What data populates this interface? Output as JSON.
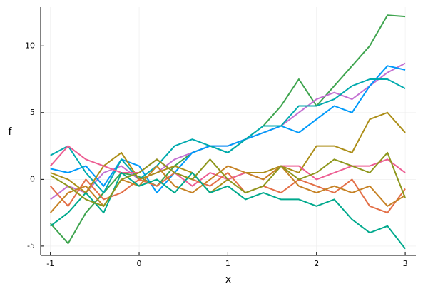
{
  "chart_data": {
    "type": "line",
    "xlabel": "x",
    "ylabel": "f",
    "x": [
      -1,
      -0.8,
      -0.6,
      -0.4,
      -0.2,
      0,
      0.2,
      0.4,
      0.6,
      0.8,
      1,
      1.2,
      1.4,
      1.6,
      1.8,
      2,
      2.2,
      2.4,
      2.6,
      2.8,
      3
    ],
    "xlim": [
      -1.11,
      3.12
    ],
    "xticks": [
      -1,
      0,
      1,
      2,
      3
    ],
    "ylim": [
      -5.7,
      12.9
    ],
    "yticks": [
      -5,
      0,
      5,
      10
    ],
    "grid": true,
    "legend": false,
    "series": [
      {
        "color": "#3ea44e",
        "values": [
          -3.3,
          -4.8,
          -2.5,
          -1.0,
          0.5,
          0.2,
          -0.5,
          1.0,
          2.0,
          2.5,
          2.0,
          3.0,
          4.0,
          5.5,
          7.5,
          5.5,
          7.0,
          8.5,
          10.0,
          12.3,
          12.2
        ]
      },
      {
        "color": "#c371d2",
        "values": [
          -1.5,
          -0.5,
          -1.0,
          0.5,
          1.0,
          0.0,
          0.5,
          1.5,
          2.0,
          2.5,
          2.5,
          3.0,
          3.5,
          4.0,
          5.0,
          6.0,
          6.5,
          6.0,
          7.0,
          8.0,
          8.7
        ]
      },
      {
        "color": "#009afa",
        "values": [
          0.8,
          0.5,
          1.0,
          -0.5,
          1.5,
          1.0,
          -1.0,
          0.5,
          2.0,
          2.5,
          2.5,
          3.0,
          3.5,
          4.0,
          3.5,
          4.5,
          5.5,
          5.0,
          7.0,
          8.5,
          8.2
        ]
      },
      {
        "color": "#00aaae",
        "values": [
          1.8,
          2.5,
          0.5,
          -1.0,
          1.5,
          0.0,
          1.0,
          2.5,
          3.0,
          2.5,
          2.0,
          3.0,
          4.0,
          4.0,
          5.5,
          5.5,
          6.0,
          7.0,
          7.5,
          7.5,
          6.8
        ]
      },
      {
        "color": "#ac8e18",
        "values": [
          0.5,
          0.0,
          -1.0,
          1.0,
          2.0,
          0.0,
          0.5,
          1.0,
          0.5,
          -1.0,
          0.0,
          0.5,
          0.5,
          1.0,
          0.5,
          2.5,
          2.5,
          2.0,
          4.5,
          5.0,
          3.5
        ]
      },
      {
        "color": "#ed5e93",
        "values": [
          1.0,
          2.5,
          1.5,
          1.0,
          0.5,
          0.5,
          1.5,
          0.5,
          -0.5,
          0.5,
          0.0,
          0.5,
          0.0,
          1.0,
          1.0,
          0.0,
          0.5,
          1.0,
          1.0,
          1.5,
          0.5
        ]
      },
      {
        "color": "#e36f47",
        "values": [
          -0.5,
          -2.0,
          0.0,
          -1.5,
          -1.0,
          0.0,
          -0.5,
          0.5,
          0.0,
          -0.5,
          0.5,
          -1.0,
          -0.5,
          -1.0,
          0.0,
          -0.5,
          -1.0,
          0.0,
          -2.0,
          -2.5,
          -0.7
        ]
      },
      {
        "color": "#c68225",
        "values": [
          -2.5,
          -1.0,
          -0.5,
          -2.0,
          0.0,
          -0.5,
          1.0,
          -0.5,
          -1.0,
          0.0,
          1.0,
          0.5,
          0.0,
          1.0,
          -0.5,
          -1.0,
          -0.5,
          -1.0,
          -0.5,
          -2.0,
          -1.2
        ]
      },
      {
        "color": "#00a98d",
        "values": [
          -3.5,
          -2.5,
          -1.0,
          -2.5,
          0.5,
          -0.5,
          0.0,
          -1.0,
          0.5,
          -1.0,
          -0.5,
          -1.5,
          -1.0,
          -1.5,
          -1.5,
          -2.0,
          -1.5,
          -3.0,
          -4.0,
          -3.5,
          -5.2
        ]
      },
      {
        "color": "#8e971d",
        "values": [
          0.3,
          -0.5,
          -1.5,
          -2.0,
          0.0,
          0.5,
          1.5,
          0.5,
          0.0,
          1.5,
          0.0,
          -1.0,
          -0.5,
          1.0,
          0.0,
          0.5,
          1.5,
          1.0,
          0.5,
          2.0,
          -1.4
        ]
      }
    ]
  }
}
